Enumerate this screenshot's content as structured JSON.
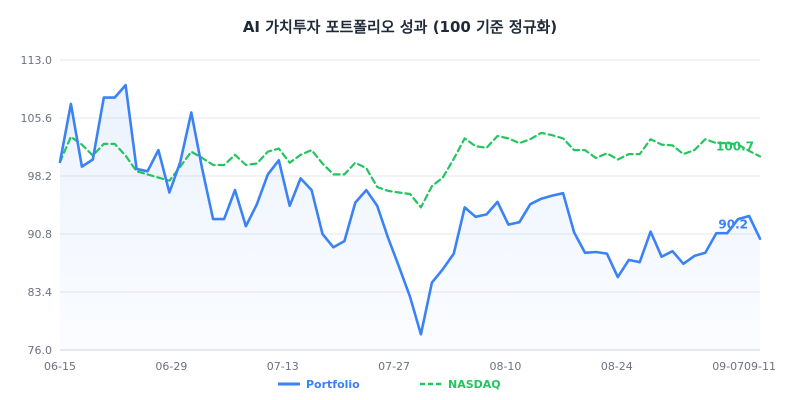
{
  "chart_data": {
    "type": "line",
    "title": "AI 가치투자 포트폴리오 성과 (100 기준 정규화)",
    "xlabel": "",
    "ylabel": "",
    "ylim": [
      76.0,
      113.0
    ],
    "yticks": [
      "76.0",
      "83.4",
      "90.8",
      "98.2",
      "105.6",
      "113.0"
    ],
    "xticks": [
      "06-15",
      "06-29",
      "07-13",
      "07-27",
      "08-10",
      "08-24",
      "09-07",
      "09-11"
    ],
    "grid": "horizontal",
    "legend": "bottom-center",
    "end_labels": {
      "portfolio": "90.2",
      "nasdaq": "100.7"
    },
    "series": [
      {
        "name": "Portfolio",
        "color": "#3b82f6",
        "style": "solid",
        "values": [
          100.0,
          107.4,
          99.4,
          100.3,
          108.2,
          108.2,
          109.8,
          99.1,
          98.8,
          101.5,
          96.1,
          100.0,
          106.3,
          99.1,
          92.7,
          92.7,
          96.4,
          91.8,
          94.6,
          98.4,
          100.2,
          94.4,
          97.9,
          96.4,
          90.8,
          89.1,
          89.9,
          94.8,
          96.4,
          94.4,
          90.3,
          86.6,
          82.8,
          78.0,
          84.6,
          86.3,
          88.3,
          94.2,
          93.0,
          93.3,
          94.9,
          92.0,
          92.3,
          94.6,
          95.3,
          95.7,
          96.0,
          91.0,
          88.4,
          88.5,
          88.3,
          85.3,
          87.5,
          87.2,
          91.1,
          87.9,
          88.6,
          87.0,
          88.0,
          88.4,
          90.9,
          90.9,
          92.7,
          93.1,
          90.2
        ]
      },
      {
        "name": "NASDAQ",
        "color": "#22c55e",
        "style": "dashed",
        "values": [
          100.0,
          103.2,
          102.2,
          100.8,
          102.3,
          102.3,
          100.8,
          98.8,
          98.4,
          98.0,
          97.6,
          99.4,
          101.3,
          100.5,
          99.6,
          99.6,
          100.9,
          99.6,
          99.8,
          101.3,
          101.7,
          99.9,
          100.9,
          101.5,
          99.8,
          98.4,
          98.4,
          99.9,
          99.2,
          96.8,
          96.3,
          96.1,
          95.9,
          94.2,
          96.9,
          98.0,
          100.4,
          103.0,
          102.0,
          101.8,
          103.3,
          103.0,
          102.4,
          102.9,
          103.7,
          103.4,
          103.0,
          101.5,
          101.5,
          100.5,
          101.1,
          100.3,
          101.0,
          101.0,
          102.9,
          102.2,
          102.1,
          101.0,
          101.5,
          102.9,
          102.4,
          102.4,
          102.2,
          101.4,
          100.7
        ]
      }
    ]
  }
}
